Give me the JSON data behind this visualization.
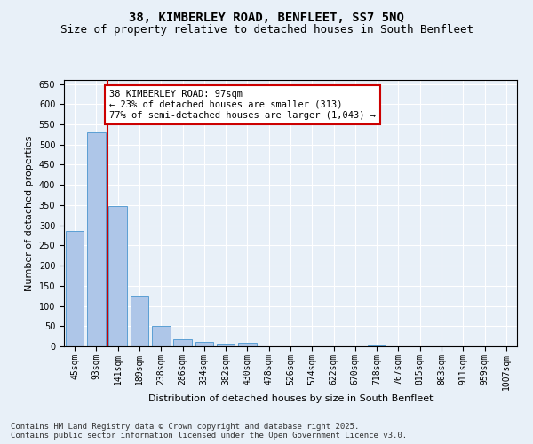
{
  "title_line1": "38, KIMBERLEY ROAD, BENFLEET, SS7 5NQ",
  "title_line2": "Size of property relative to detached houses in South Benfleet",
  "xlabel": "Distribution of detached houses by size in South Benfleet",
  "ylabel": "Number of detached properties",
  "categories": [
    "45sqm",
    "93sqm",
    "141sqm",
    "189sqm",
    "238sqm",
    "286sqm",
    "334sqm",
    "382sqm",
    "430sqm",
    "478sqm",
    "526sqm",
    "574sqm",
    "622sqm",
    "670sqm",
    "718sqm",
    "767sqm",
    "815sqm",
    "863sqm",
    "911sqm",
    "959sqm",
    "1007sqm"
  ],
  "values": [
    285,
    530,
    348,
    125,
    50,
    17,
    10,
    6,
    9,
    1,
    0,
    0,
    0,
    0,
    2,
    0,
    0,
    0,
    0,
    0,
    1
  ],
  "bar_color": "#aec6e8",
  "bar_edge_color": "#5a9fd4",
  "vline_x": 1.5,
  "vline_color": "#cc0000",
  "annotation_line1": "38 KIMBERLEY ROAD: 97sqm",
  "annotation_line2": "← 23% of detached houses are smaller (313)",
  "annotation_line3": "77% of semi-detached houses are larger (1,043) →",
  "annotation_box_color": "#ffffff",
  "annotation_box_edge_color": "#cc0000",
  "ylim": [
    0,
    660
  ],
  "yticks": [
    0,
    50,
    100,
    150,
    200,
    250,
    300,
    350,
    400,
    450,
    500,
    550,
    600,
    650
  ],
  "background_color": "#e8f0f8",
  "plot_bg_color": "#e8f0f8",
  "footer_line1": "Contains HM Land Registry data © Crown copyright and database right 2025.",
  "footer_line2": "Contains public sector information licensed under the Open Government Licence v3.0.",
  "title_fontsize": 10,
  "subtitle_fontsize": 9,
  "axis_label_fontsize": 8,
  "tick_fontsize": 7,
  "annotation_fontsize": 7.5,
  "footer_fontsize": 6.5
}
